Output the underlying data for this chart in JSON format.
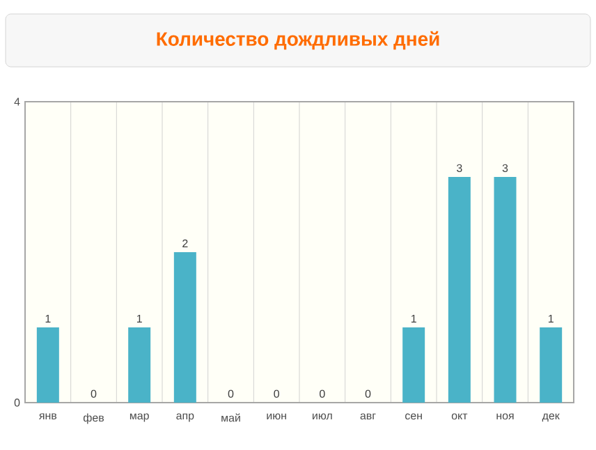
{
  "chart_data": {
    "type": "bar",
    "title": "Количество дождливых дней",
    "categories": [
      "янв",
      "фев",
      "мар",
      "апр",
      "май",
      "июн",
      "июл",
      "авг",
      "сен",
      "окт",
      "ноя",
      "дек"
    ],
    "values": [
      1,
      0,
      1,
      2,
      0,
      0,
      0,
      0,
      1,
      3,
      3,
      1
    ],
    "color": "#4ab3c8",
    "ylim": [
      0,
      4
    ],
    "yticks": [
      0,
      4
    ],
    "grid": "x",
    "data_labels": true
  }
}
